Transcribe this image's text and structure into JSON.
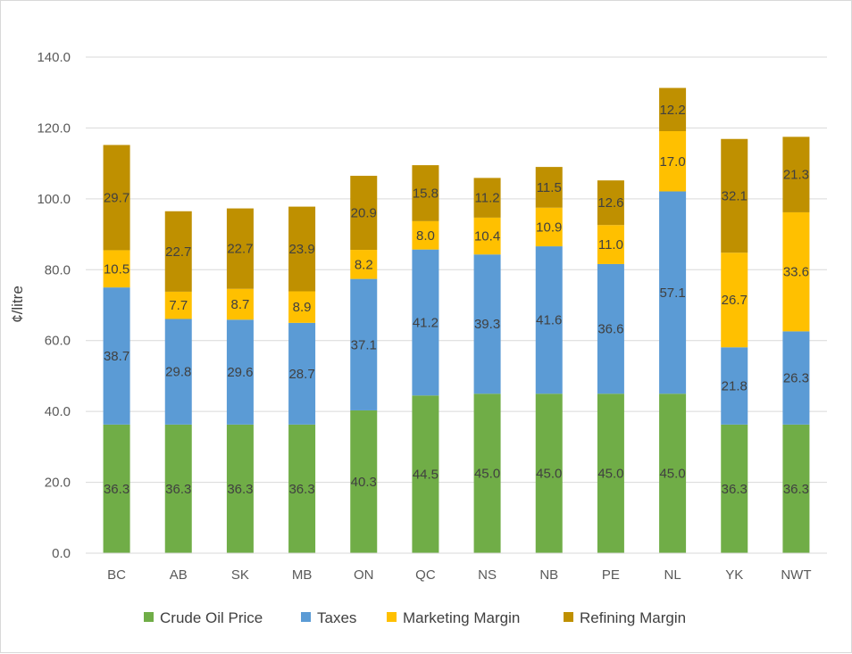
{
  "chart_data": {
    "type": "bar",
    "stacked": true,
    "title": "",
    "xlabel": "",
    "ylabel": "¢/litre",
    "ylim": [
      0,
      140
    ],
    "ytick_step": 20,
    "ytick_labels": [
      "0.0",
      "20.0",
      "40.0",
      "60.0",
      "80.0",
      "100.0",
      "120.0",
      "140.0"
    ],
    "categories": [
      "BC",
      "AB",
      "SK",
      "MB",
      "ON",
      "QC",
      "NS",
      "NB",
      "PE",
      "NL",
      "YK",
      "NWT"
    ],
    "series": [
      {
        "name": "Crude Oil Price",
        "color": "#70ad47",
        "values": [
          36.3,
          36.3,
          36.3,
          36.3,
          40.3,
          44.5,
          45.0,
          45.0,
          45.0,
          45.0,
          36.3,
          36.3
        ]
      },
      {
        "name": "Taxes",
        "color": "#5b9bd5",
        "values": [
          38.7,
          29.8,
          29.6,
          28.7,
          37.1,
          41.2,
          39.3,
          41.6,
          36.6,
          57.1,
          21.8,
          26.3
        ]
      },
      {
        "name": "Marketing Margin",
        "color": "#ffc000",
        "values": [
          10.5,
          7.7,
          8.7,
          8.9,
          8.2,
          8.0,
          10.4,
          10.9,
          11.0,
          17.0,
          26.7,
          33.6
        ]
      },
      {
        "name": "Refining Margin",
        "color": "#bf9000",
        "values": [
          29.7,
          22.7,
          22.7,
          23.9,
          20.9,
          15.8,
          11.2,
          11.5,
          12.6,
          12.2,
          32.1,
          21.3
        ]
      }
    ],
    "legend_position": "bottom",
    "grid": true
  }
}
